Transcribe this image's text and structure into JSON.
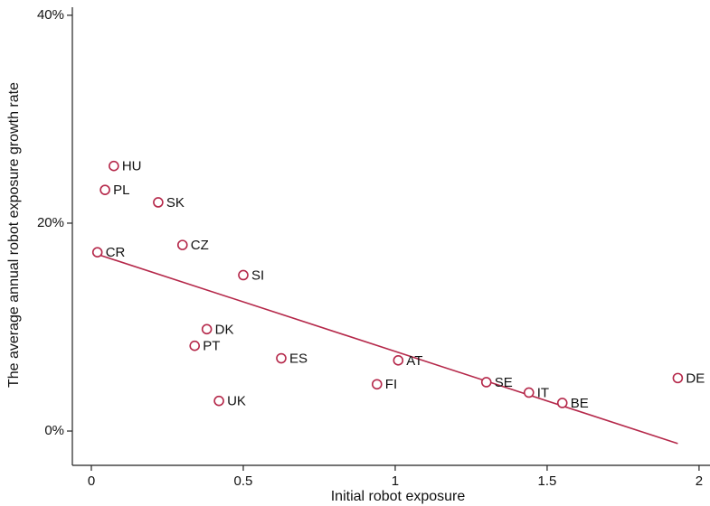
{
  "chart_data": {
    "type": "scatter",
    "x_label": "Initial robot exposure",
    "y_label": "The average annual robot exposure growth rate",
    "point_labels": [
      "HU",
      "PL",
      "SK",
      "CZ",
      "CR",
      "SI",
      "DK",
      "PT",
      "ES",
      "AT",
      "FI",
      "UK",
      "SE",
      "IT",
      "BE",
      "DE"
    ],
    "x": [
      0.074,
      0.045,
      0.22,
      0.3,
      0.02,
      0.5,
      0.38,
      0.34,
      0.625,
      1.01,
      0.94,
      0.42,
      1.3,
      1.44,
      1.55,
      1.93
    ],
    "values": [
      25.5,
      23.2,
      22.0,
      17.9,
      17.2,
      15.0,
      9.8,
      8.2,
      7.0,
      6.8,
      4.5,
      2.9,
      4.7,
      3.7,
      2.7,
      5.1
    ],
    "color": "#b5284a",
    "fit_line": {
      "x": [
        0.02,
        1.93
      ],
      "values": [
        17.0,
        -1.2
      ],
      "color": "#b5284a"
    },
    "xlim": [
      -0.0625,
      2.036
    ],
    "ylim": [
      -3.3,
      40.6
    ],
    "xticks": [
      0,
      0.5,
      1,
      1.5,
      2
    ],
    "yticks": [
      {
        "value": 0,
        "label": "0%"
      },
      {
        "value": 20,
        "label": "20%"
      },
      {
        "value": 40,
        "label": "40%"
      }
    ],
    "grid": false
  }
}
